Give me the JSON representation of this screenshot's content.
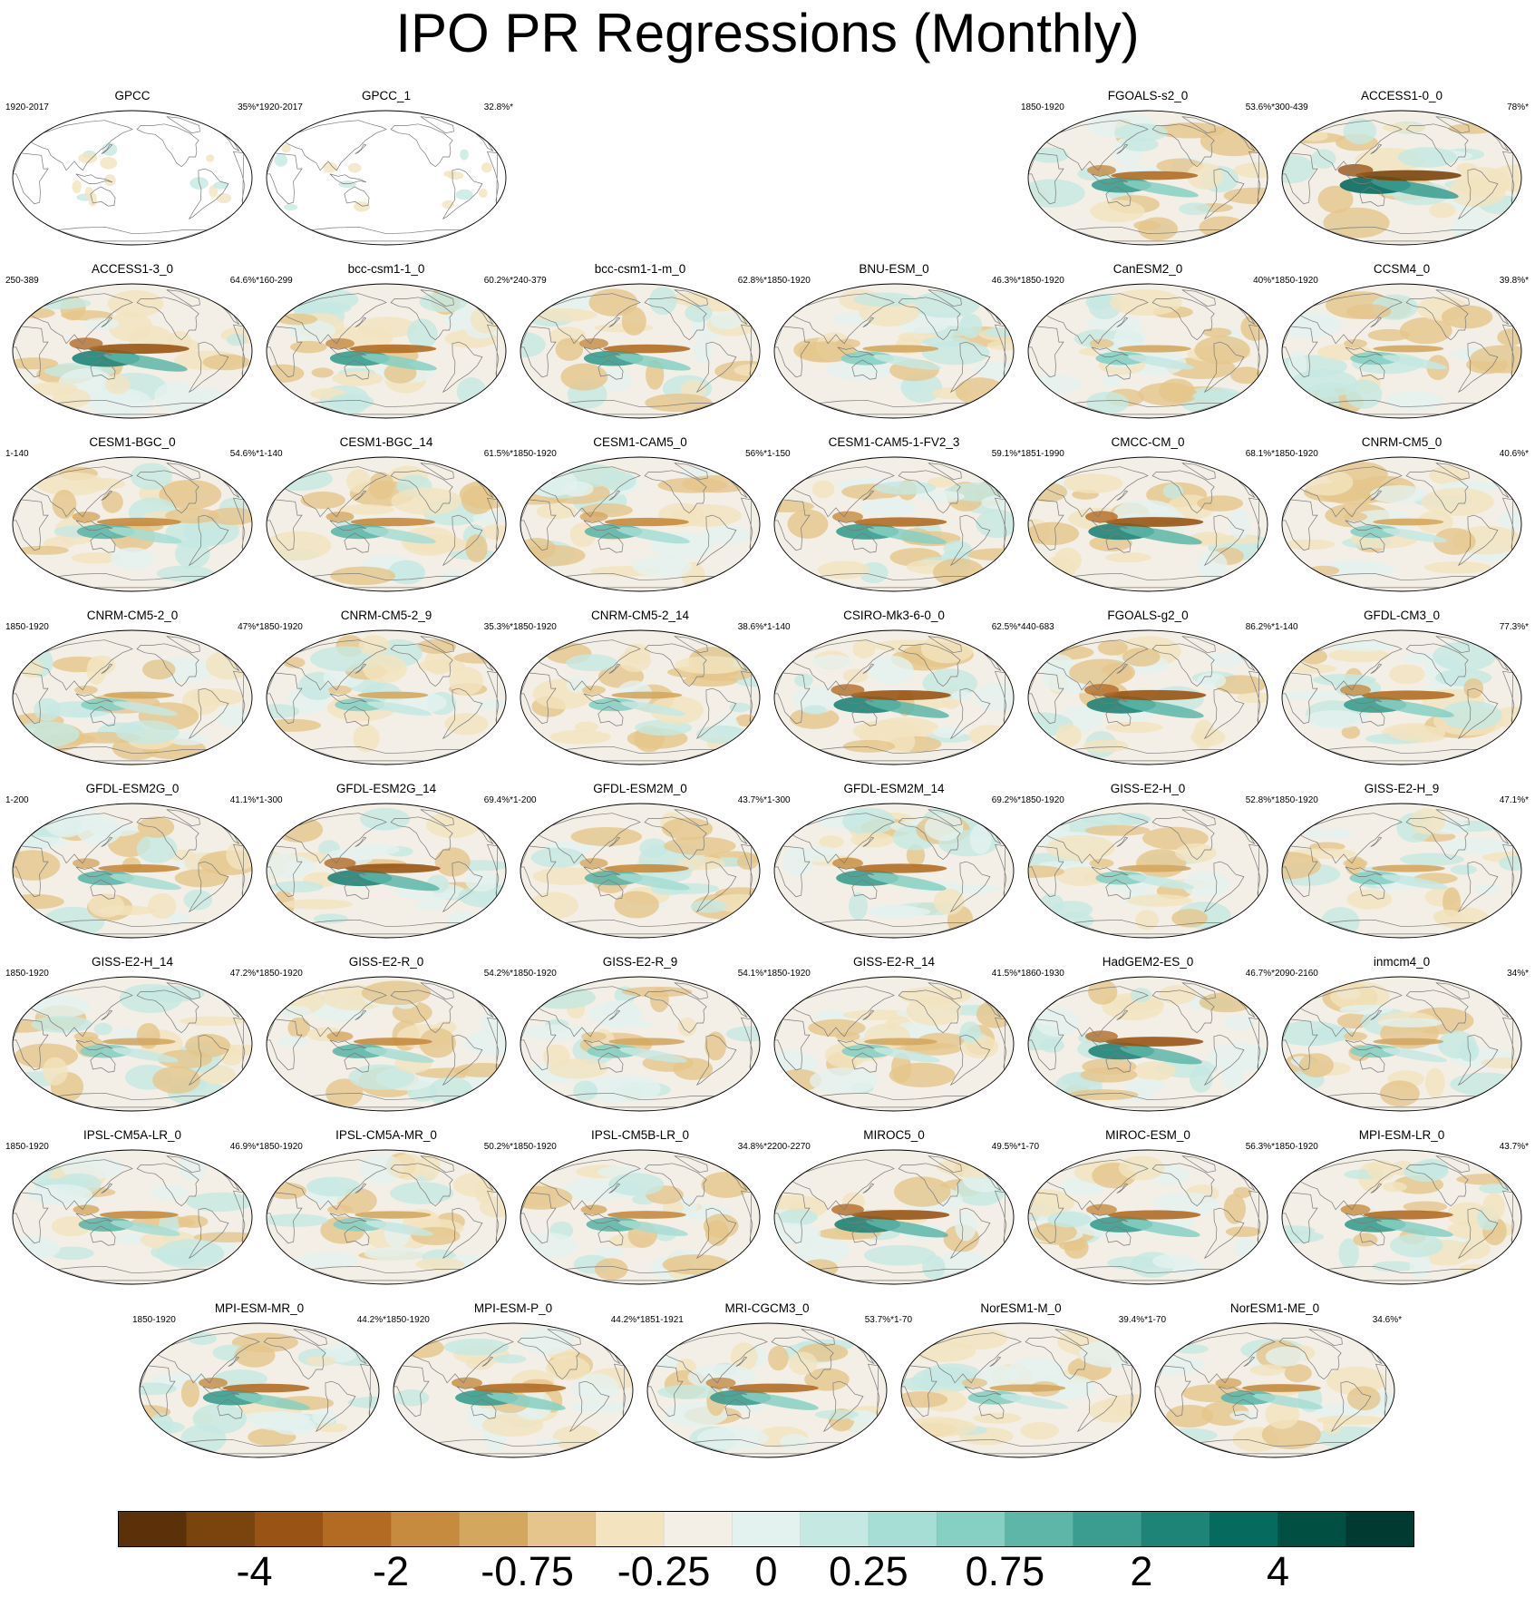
{
  "chart_data": {
    "type": "heatmap",
    "title": "IPO PR Regressions (Monthly)",
    "colorbar": {
      "colors": [
        "#5a3109",
        "#7a440e",
        "#995415",
        "#b36b24",
        "#c68b3e",
        "#d4a75f",
        "#e5c58b",
        "#f3e3bf",
        "#f4efe6",
        "#e3f1ef",
        "#c5e8e2",
        "#a6ddd4",
        "#86d0c3",
        "#5db6a8",
        "#3a9d8f",
        "#1e8478",
        "#076a5e",
        "#004f43",
        "#003a30"
      ],
      "tick_labels": [
        "-4",
        "-2",
        "-0.75",
        "-0.25",
        "0",
        "0.25",
        "0.75",
        "2",
        "4"
      ]
    },
    "panels": [
      {
        "name": "GPCC",
        "period": "1920-2017",
        "varexp": "35%*",
        "intensity": 0.2,
        "land_masked": true
      },
      {
        "name": "GPCC_1",
        "period": "1920-2017",
        "varexp": "32.8%*",
        "intensity": 0.2,
        "land_masked": true
      },
      {
        "name": "FGOALS-s2_0",
        "period": "1850-1920",
        "varexp": "53.6%*",
        "intensity": 0.6
      },
      {
        "name": "ACCESS1-0_0",
        "period": "300-439",
        "varexp": "78%*",
        "intensity": 0.95
      },
      {
        "name": "ACCESS1-3_0",
        "period": "250-389",
        "varexp": "64.6%*",
        "intensity": 0.85
      },
      {
        "name": "bcc-csm1-1_0",
        "period": "160-299",
        "varexp": "60.2%*",
        "intensity": 0.6
      },
      {
        "name": "bcc-csm1-1-m_0",
        "period": "240-379",
        "varexp": "62.8%*",
        "intensity": 0.6
      },
      {
        "name": "BNU-ESM_0",
        "period": "1850-1920",
        "varexp": "46.3%*",
        "intensity": 0.4
      },
      {
        "name": "CanESM2_0",
        "period": "1850-1920",
        "varexp": "40%*",
        "intensity": 0.35
      },
      {
        "name": "CCSM4_0",
        "period": "1850-1920",
        "varexp": "39.8%*",
        "intensity": 0.3
      },
      {
        "name": "CESM1-BGC_0",
        "period": "1-140",
        "varexp": "54.6%*",
        "intensity": 0.55
      },
      {
        "name": "CESM1-BGC_14",
        "period": "1-140",
        "varexp": "61.5%*",
        "intensity": 0.55
      },
      {
        "name": "CESM1-CAM5_0",
        "period": "1850-1920",
        "varexp": "56%*",
        "intensity": 0.55
      },
      {
        "name": "CESM1-CAM5-1-FV2_3",
        "period": "1-150",
        "varexp": "59.1%*",
        "intensity": 0.7
      },
      {
        "name": "CMCC-CM_0",
        "period": "1851-1990",
        "varexp": "68.1%*",
        "intensity": 0.8
      },
      {
        "name": "CNRM-CM5_0",
        "period": "1850-1920",
        "varexp": "40.6%*",
        "intensity": 0.3
      },
      {
        "name": "CNRM-CM5-2_0",
        "period": "1850-1920",
        "varexp": "47%*",
        "intensity": 0.3
      },
      {
        "name": "CNRM-CM5-2_9",
        "period": "1850-1920",
        "varexp": "35.3%*",
        "intensity": 0.3
      },
      {
        "name": "CNRM-CM5-2_14",
        "period": "1850-1920",
        "varexp": "38.6%*",
        "intensity": 0.3
      },
      {
        "name": "CSIRO-Mk3-6-0_0",
        "period": "1-140",
        "varexp": "62.5%*",
        "intensity": 0.85
      },
      {
        "name": "FGOALS-g2_0",
        "period": "440-683",
        "varexp": "86.2%*",
        "intensity": 0.9
      },
      {
        "name": "GFDL-CM3_0",
        "period": "1-140",
        "varexp": "77.3%*",
        "intensity": 0.7
      },
      {
        "name": "GFDL-ESM2G_0",
        "period": "1-200",
        "varexp": "41.1%*",
        "intensity": 0.5
      },
      {
        "name": "GFDL-ESM2G_14",
        "period": "1-300",
        "varexp": "69.4%*",
        "intensity": 0.75
      },
      {
        "name": "GFDL-ESM2M_0",
        "period": "1-200",
        "varexp": "43.7%*",
        "intensity": 0.55
      },
      {
        "name": "GFDL-ESM2M_14",
        "period": "1-300",
        "varexp": "69.2%*",
        "intensity": 0.7
      },
      {
        "name": "GISS-E2-H_0",
        "period": "1850-1920",
        "varexp": "52.8%*",
        "intensity": 0.35
      },
      {
        "name": "GISS-E2-H_9",
        "period": "1850-1920",
        "varexp": "47.1%*",
        "intensity": 0.35
      },
      {
        "name": "GISS-E2-H_14",
        "period": "1850-1920",
        "varexp": "47.2%*",
        "intensity": 0.35
      },
      {
        "name": "GISS-E2-R_0",
        "period": "1850-1920",
        "varexp": "54.2%*",
        "intensity": 0.45
      },
      {
        "name": "GISS-E2-R_9",
        "period": "1850-1920",
        "varexp": "54.1%*",
        "intensity": 0.4
      },
      {
        "name": "GISS-E2-R_14",
        "period": "1850-1920",
        "varexp": "41.5%*",
        "intensity": 0.35
      },
      {
        "name": "HadGEM2-ES_0",
        "period": "1860-1930",
        "varexp": "46.7%*",
        "intensity": 0.8
      },
      {
        "name": "inmcm4_0",
        "period": "2090-2160",
        "varexp": "34%*",
        "intensity": 0.3
      },
      {
        "name": "IPSL-CM5A-LR_0",
        "period": "1850-1920",
        "varexp": "46.9%*",
        "intensity": 0.45
      },
      {
        "name": "IPSL-CM5A-MR_0",
        "period": "1850-1920",
        "varexp": "50.2%*",
        "intensity": 0.4
      },
      {
        "name": "IPSL-CM5B-LR_0",
        "period": "1850-1920",
        "varexp": "34.8%*",
        "intensity": 0.45
      },
      {
        "name": "MIROC5_0",
        "period": "2200-2270",
        "varexp": "49.5%*",
        "intensity": 0.8
      },
      {
        "name": "MIROC-ESM_0",
        "period": "1-70",
        "varexp": "56.3%*",
        "intensity": 0.7
      },
      {
        "name": "MPI-ESM-LR_0",
        "period": "1850-1920",
        "varexp": "43.7%*",
        "intensity": 0.65
      },
      {
        "name": "MPI-ESM-MR_0",
        "period": "1850-1920",
        "varexp": "44.2%*",
        "intensity": 0.6
      },
      {
        "name": "MPI-ESM-P_0",
        "period": "1850-1920",
        "varexp": "44.2%*",
        "intensity": 0.7
      },
      {
        "name": "MRI-CGCM3_0",
        "period": "1851-1921",
        "varexp": "53.7%*",
        "intensity": 0.65
      },
      {
        "name": "NorESM1-M_0",
        "period": "1-70",
        "varexp": "39.4%*",
        "intensity": 0.4
      },
      {
        "name": "NorESM1-ME_0",
        "period": "1-70",
        "varexp": "34.6%*",
        "intensity": 0.45
      }
    ]
  }
}
